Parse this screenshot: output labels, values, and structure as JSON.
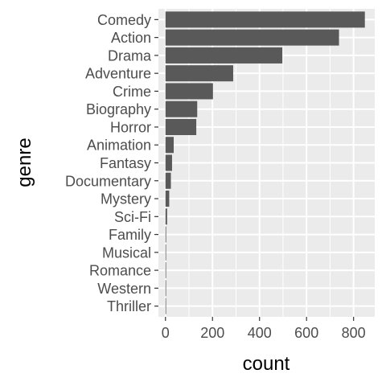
{
  "chart_data": {
    "type": "bar",
    "orientation": "horizontal",
    "xlabel": "count",
    "ylabel": "genre",
    "categories": [
      "Comedy",
      "Action",
      "Drama",
      "Adventure",
      "Crime",
      "Biography",
      "Horror",
      "Animation",
      "Fantasy",
      "Documentary",
      "Mystery",
      "Sci-Fi",
      "Family",
      "Musical",
      "Romance",
      "Western",
      "Thriller"
    ],
    "values": [
      848,
      738,
      497,
      288,
      202,
      135,
      131,
      35,
      28,
      23,
      16,
      7,
      3,
      2,
      2,
      2,
      1
    ],
    "xlim": [
      -30,
      890
    ],
    "xticks": [
      0,
      200,
      400,
      600,
      800
    ],
    "grid": true,
    "legend": "none",
    "colors": {
      "bar": "#595959",
      "panel": "#ebebeb",
      "grid": "#ffffff",
      "text": "#4d4d4d"
    }
  }
}
